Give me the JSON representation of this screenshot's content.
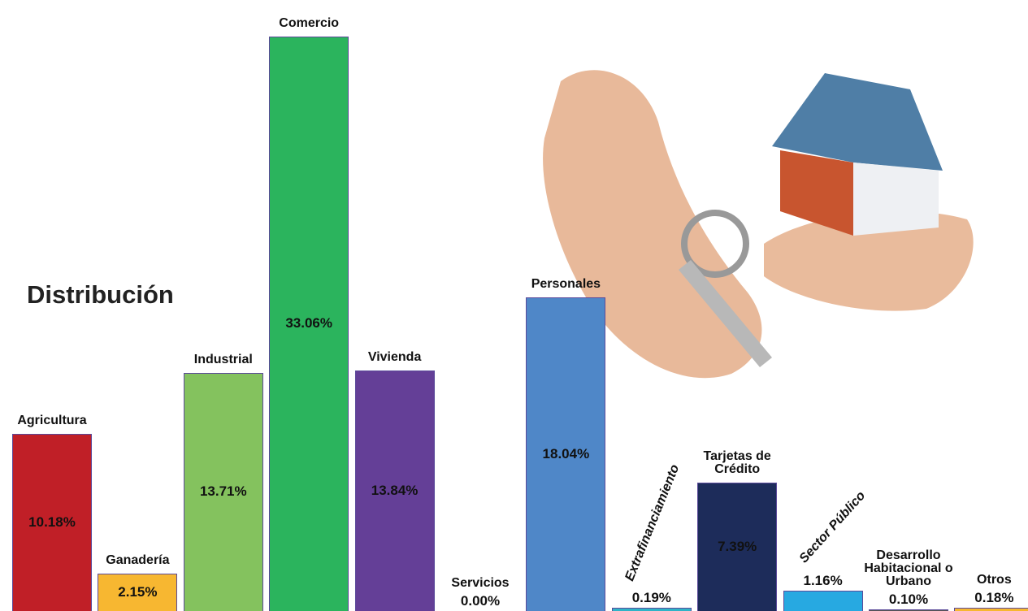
{
  "chart_data": {
    "type": "bar",
    "title": "Distribución",
    "categories": [
      "Agricultura",
      "Ganadería",
      "Industrial",
      "Comercio",
      "Vivienda",
      "Servicios",
      "Personales",
      "Extrafinanciamiento",
      "Tarjetas de Crédito",
      "Sector Público",
      "Desarrollo Habitacional o Urbano",
      "Otros"
    ],
    "values": [
      10.18,
      2.15,
      13.71,
      33.06,
      13.84,
      0.0,
      18.04,
      0.19,
      7.39,
      1.16,
      0.1,
      0.18
    ],
    "value_labels": [
      "10.18%",
      "2.15%",
      "13.71%",
      "33.06%",
      "13.84%",
      "0.00%",
      "18.04%",
      "0.19%",
      "7.39%",
      "1.16%",
      "0.10%",
      "0.18%"
    ],
    "colors": [
      "#c01f27",
      "#f7b731",
      "#84c25e",
      "#2bb45d",
      "#643f97",
      "#7f7f7f",
      "#4f87c8",
      "#2fb3c7",
      "#1d2c5a",
      "#27a9e1",
      "#555555",
      "#f7b731"
    ],
    "ylim": [
      0,
      35
    ]
  }
}
